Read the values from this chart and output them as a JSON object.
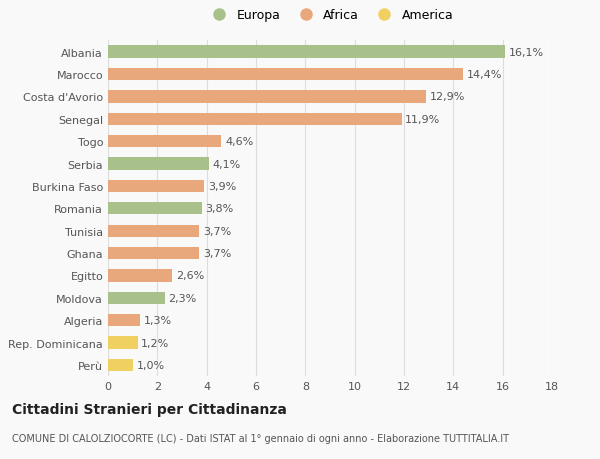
{
  "categories": [
    "Albania",
    "Marocco",
    "Costa d'Avorio",
    "Senegal",
    "Togo",
    "Serbia",
    "Burkina Faso",
    "Romania",
    "Tunisia",
    "Ghana",
    "Egitto",
    "Moldova",
    "Algeria",
    "Rep. Dominicana",
    "Perù"
  ],
  "values": [
    16.1,
    14.4,
    12.9,
    11.9,
    4.6,
    4.1,
    3.9,
    3.8,
    3.7,
    3.7,
    2.6,
    2.3,
    1.3,
    1.2,
    1.0
  ],
  "labels": [
    "16,1%",
    "14,4%",
    "12,9%",
    "11,9%",
    "4,6%",
    "4,1%",
    "3,9%",
    "3,8%",
    "3,7%",
    "3,7%",
    "2,6%",
    "2,3%",
    "1,3%",
    "1,2%",
    "1,0%"
  ],
  "continents": [
    "Europa",
    "Africa",
    "Africa",
    "Africa",
    "Africa",
    "Europa",
    "Africa",
    "Europa",
    "Africa",
    "Africa",
    "Africa",
    "Europa",
    "Africa",
    "America",
    "America"
  ],
  "colors": {
    "Europa": "#a8c08a",
    "Africa": "#e8a87c",
    "America": "#f0d060"
  },
  "xlim": [
    0,
    18
  ],
  "xticks": [
    0,
    2,
    4,
    6,
    8,
    10,
    12,
    14,
    16,
    18
  ],
  "title": "Cittadini Stranieri per Cittadinanza",
  "subtitle": "COMUNE DI CALOLZIOCORTE (LC) - Dati ISTAT al 1° gennaio di ogni anno - Elaborazione TUTTITALIA.IT",
  "background_color": "#f9f9f9",
  "grid_color": "#dddddd",
  "bar_height": 0.55,
  "label_fontsize": 8,
  "tick_fontsize": 8,
  "title_fontsize": 10,
  "subtitle_fontsize": 7,
  "legend_items": [
    "Europa",
    "Africa",
    "America"
  ]
}
